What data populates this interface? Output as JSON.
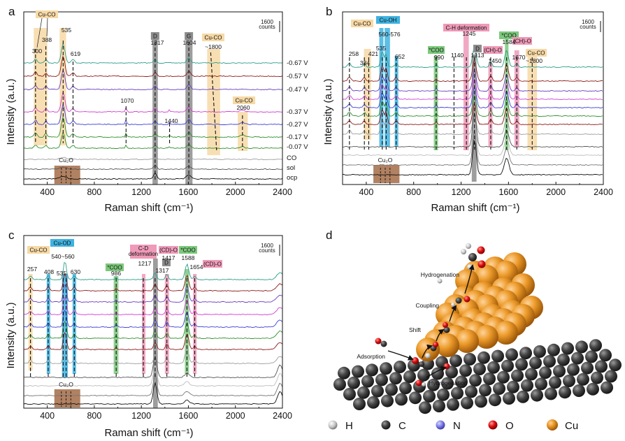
{
  "panels": [
    {
      "id": "a",
      "letter": "a",
      "ylabel": "Intensity (a.u.)",
      "xlabel": "Raman shift (cm⁻¹)",
      "xlim": [
        200,
        2400
      ],
      "xticks": [
        "400",
        "800",
        "1200",
        "1600",
        "2000",
        "2400"
      ],
      "scalebar": "1600\ncounts",
      "trace_labels": [
        "-0.67 V",
        "-0.57 V",
        "-0.47 V",
        "-0.37 V",
        "-0.27 V",
        "-0.17 V",
        "-0.07 V",
        "CO",
        "sol",
        "ocp"
      ],
      "bands": [
        {
          "text": "Cu-CO",
          "kind": "cuco",
          "lo": 280,
          "hi": 400
        },
        {
          "text": "D",
          "kind": "grey",
          "lo": 1295,
          "hi": 1340
        },
        {
          "text": "G",
          "kind": "grey",
          "lo": 1580,
          "hi": 1630
        },
        {
          "text": "Cu-CO",
          "kind": "cuco",
          "lo": 1760,
          "hi": 1870
        },
        {
          "text": "Cu-CO",
          "kind": "cuco",
          "lo": 2020,
          "hi": 2100
        }
      ],
      "peaks": [
        "300",
        "388",
        "535",
        "619",
        "1317",
        "1604",
        "~1800",
        "1070",
        "1440",
        "2060"
      ],
      "cu2o_label": "Cu₂O"
    },
    {
      "id": "b",
      "letter": "b",
      "ylabel": "Intensity (a.u.)",
      "xlabel": "Raman shift (cm⁻¹)",
      "xlim": [
        200,
        2400
      ],
      "xticks": [
        "400",
        "800",
        "1200",
        "1600",
        "2000",
        "2400"
      ],
      "scalebar": "1600\ncounts",
      "tags": [
        "Cu-CO",
        "Cu-OH",
        "*COO",
        "C-H deformation",
        "(CH)-O",
        "*COO",
        "(CH)-O",
        "Cu-CO",
        "D"
      ],
      "peaks": [
        "258",
        "384",
        "421",
        "535",
        "560-576",
        "652",
        "990",
        "1140",
        "1245",
        "1313",
        "1450",
        "1584",
        "1670",
        "~1800"
      ],
      "cu2o_label": "Cu₂O"
    },
    {
      "id": "c",
      "letter": "c",
      "ylabel": "Intensity (a.u.)",
      "xlabel": "Raman shift (cm⁻¹)",
      "xlim": [
        200,
        2400
      ],
      "xticks": [
        "400",
        "800",
        "1200",
        "1600",
        "2000",
        "2400"
      ],
      "scalebar": "1600\ncounts",
      "tags": [
        "Cu-CO",
        "Cu-OD",
        "*COO",
        "C-D\ndeformation",
        "D",
        "(CD)-O",
        "*COO",
        "(CD)-O"
      ],
      "peaks": [
        "257",
        "408",
        "540~560",
        "535",
        "630",
        "986",
        "1217",
        "1317",
        "1417",
        "1588",
        "1654"
      ],
      "cu2o_label": "Cu₂O"
    }
  ],
  "panel_d": {
    "letter": "d",
    "steps": [
      "Hydrogenation",
      "Coupling",
      "Shift",
      "Adsorption",
      "Hydrogenation"
    ],
    "legend": [
      {
        "label": "H",
        "color": "#bdbdbd"
      },
      {
        "label": "C",
        "color": "#3a3a3a"
      },
      {
        "label": "N",
        "color": "#7a7ae8"
      },
      {
        "label": "O",
        "color": "#e01010"
      },
      {
        "label": "Cu",
        "color": "#e8901c"
      }
    ]
  },
  "colors": {
    "cuco": "#f7d9a6",
    "cuoh": "#3fb3e0",
    "coo": "#7cc87c",
    "ch": "#ef9ab8",
    "grey": "#8c8c8c",
    "cu2o": "#a87350",
    "traces": [
      "#2e9e8a",
      "#8e1b1b",
      "#6a3fc2",
      "#d23fd2",
      "#4040d8",
      "#2f8f2f",
      "#2f8f2f",
      "#9e9e9e",
      "#555555",
      "#111111"
    ]
  },
  "chart_data": [
    {
      "type": "line",
      "panel": "a",
      "xlabel": "Raman shift (cm⁻¹)",
      "ylabel": "Intensity (a.u.)",
      "xlim": [
        200,
        2400
      ],
      "series": [
        {
          "name": "-0.67 V",
          "peaks": [
            300,
            388,
            535,
            619,
            1317,
            1604
          ]
        },
        {
          "name": "-0.57 V",
          "peaks": [
            300,
            388,
            535,
            619,
            1317,
            1604
          ]
        },
        {
          "name": "-0.47 V",
          "peaks": [
            300,
            388,
            535,
            619,
            1317,
            1604
          ]
        },
        {
          "name": "-0.37 V",
          "peaks": [
            300,
            388,
            535,
            619,
            1070,
            1317,
            1440,
            1604,
            1800,
            2060
          ]
        },
        {
          "name": "-0.27 V",
          "peaks": [
            300,
            388,
            535,
            619,
            1070,
            1317,
            1440,
            1604,
            1800,
            2060
          ]
        },
        {
          "name": "-0.17 V",
          "peaks": [
            300,
            388,
            535,
            619,
            1070,
            1317,
            1604,
            1800,
            2060
          ]
        },
        {
          "name": "-0.07 V",
          "peaks": [
            300,
            388,
            535,
            619,
            1317,
            1604,
            1800,
            2060
          ]
        },
        {
          "name": "CO",
          "peaks": [
            1317,
            1604
          ]
        },
        {
          "name": "sol",
          "peaks": [
            1317,
            1604
          ]
        },
        {
          "name": "ocp",
          "peaks": [
            535,
            1317,
            1604
          ]
        }
      ]
    },
    {
      "type": "line",
      "panel": "b",
      "xlabel": "Raman shift (cm⁻¹)",
      "ylabel": "Intensity (a.u.)",
      "xlim": [
        200,
        2400
      ],
      "peak_positions": [
        258,
        384,
        421,
        535,
        568,
        652,
        990,
        1140,
        1245,
        1313,
        1450,
        1584,
        1670,
        1800
      ]
    },
    {
      "type": "line",
      "panel": "c",
      "xlabel": "Raman shift (cm⁻¹)",
      "ylabel": "Intensity (a.u.)",
      "xlim": [
        200,
        2400
      ],
      "peak_positions": [
        257,
        408,
        535,
        550,
        630,
        986,
        1217,
        1317,
        1417,
        1588,
        1654
      ]
    }
  ]
}
